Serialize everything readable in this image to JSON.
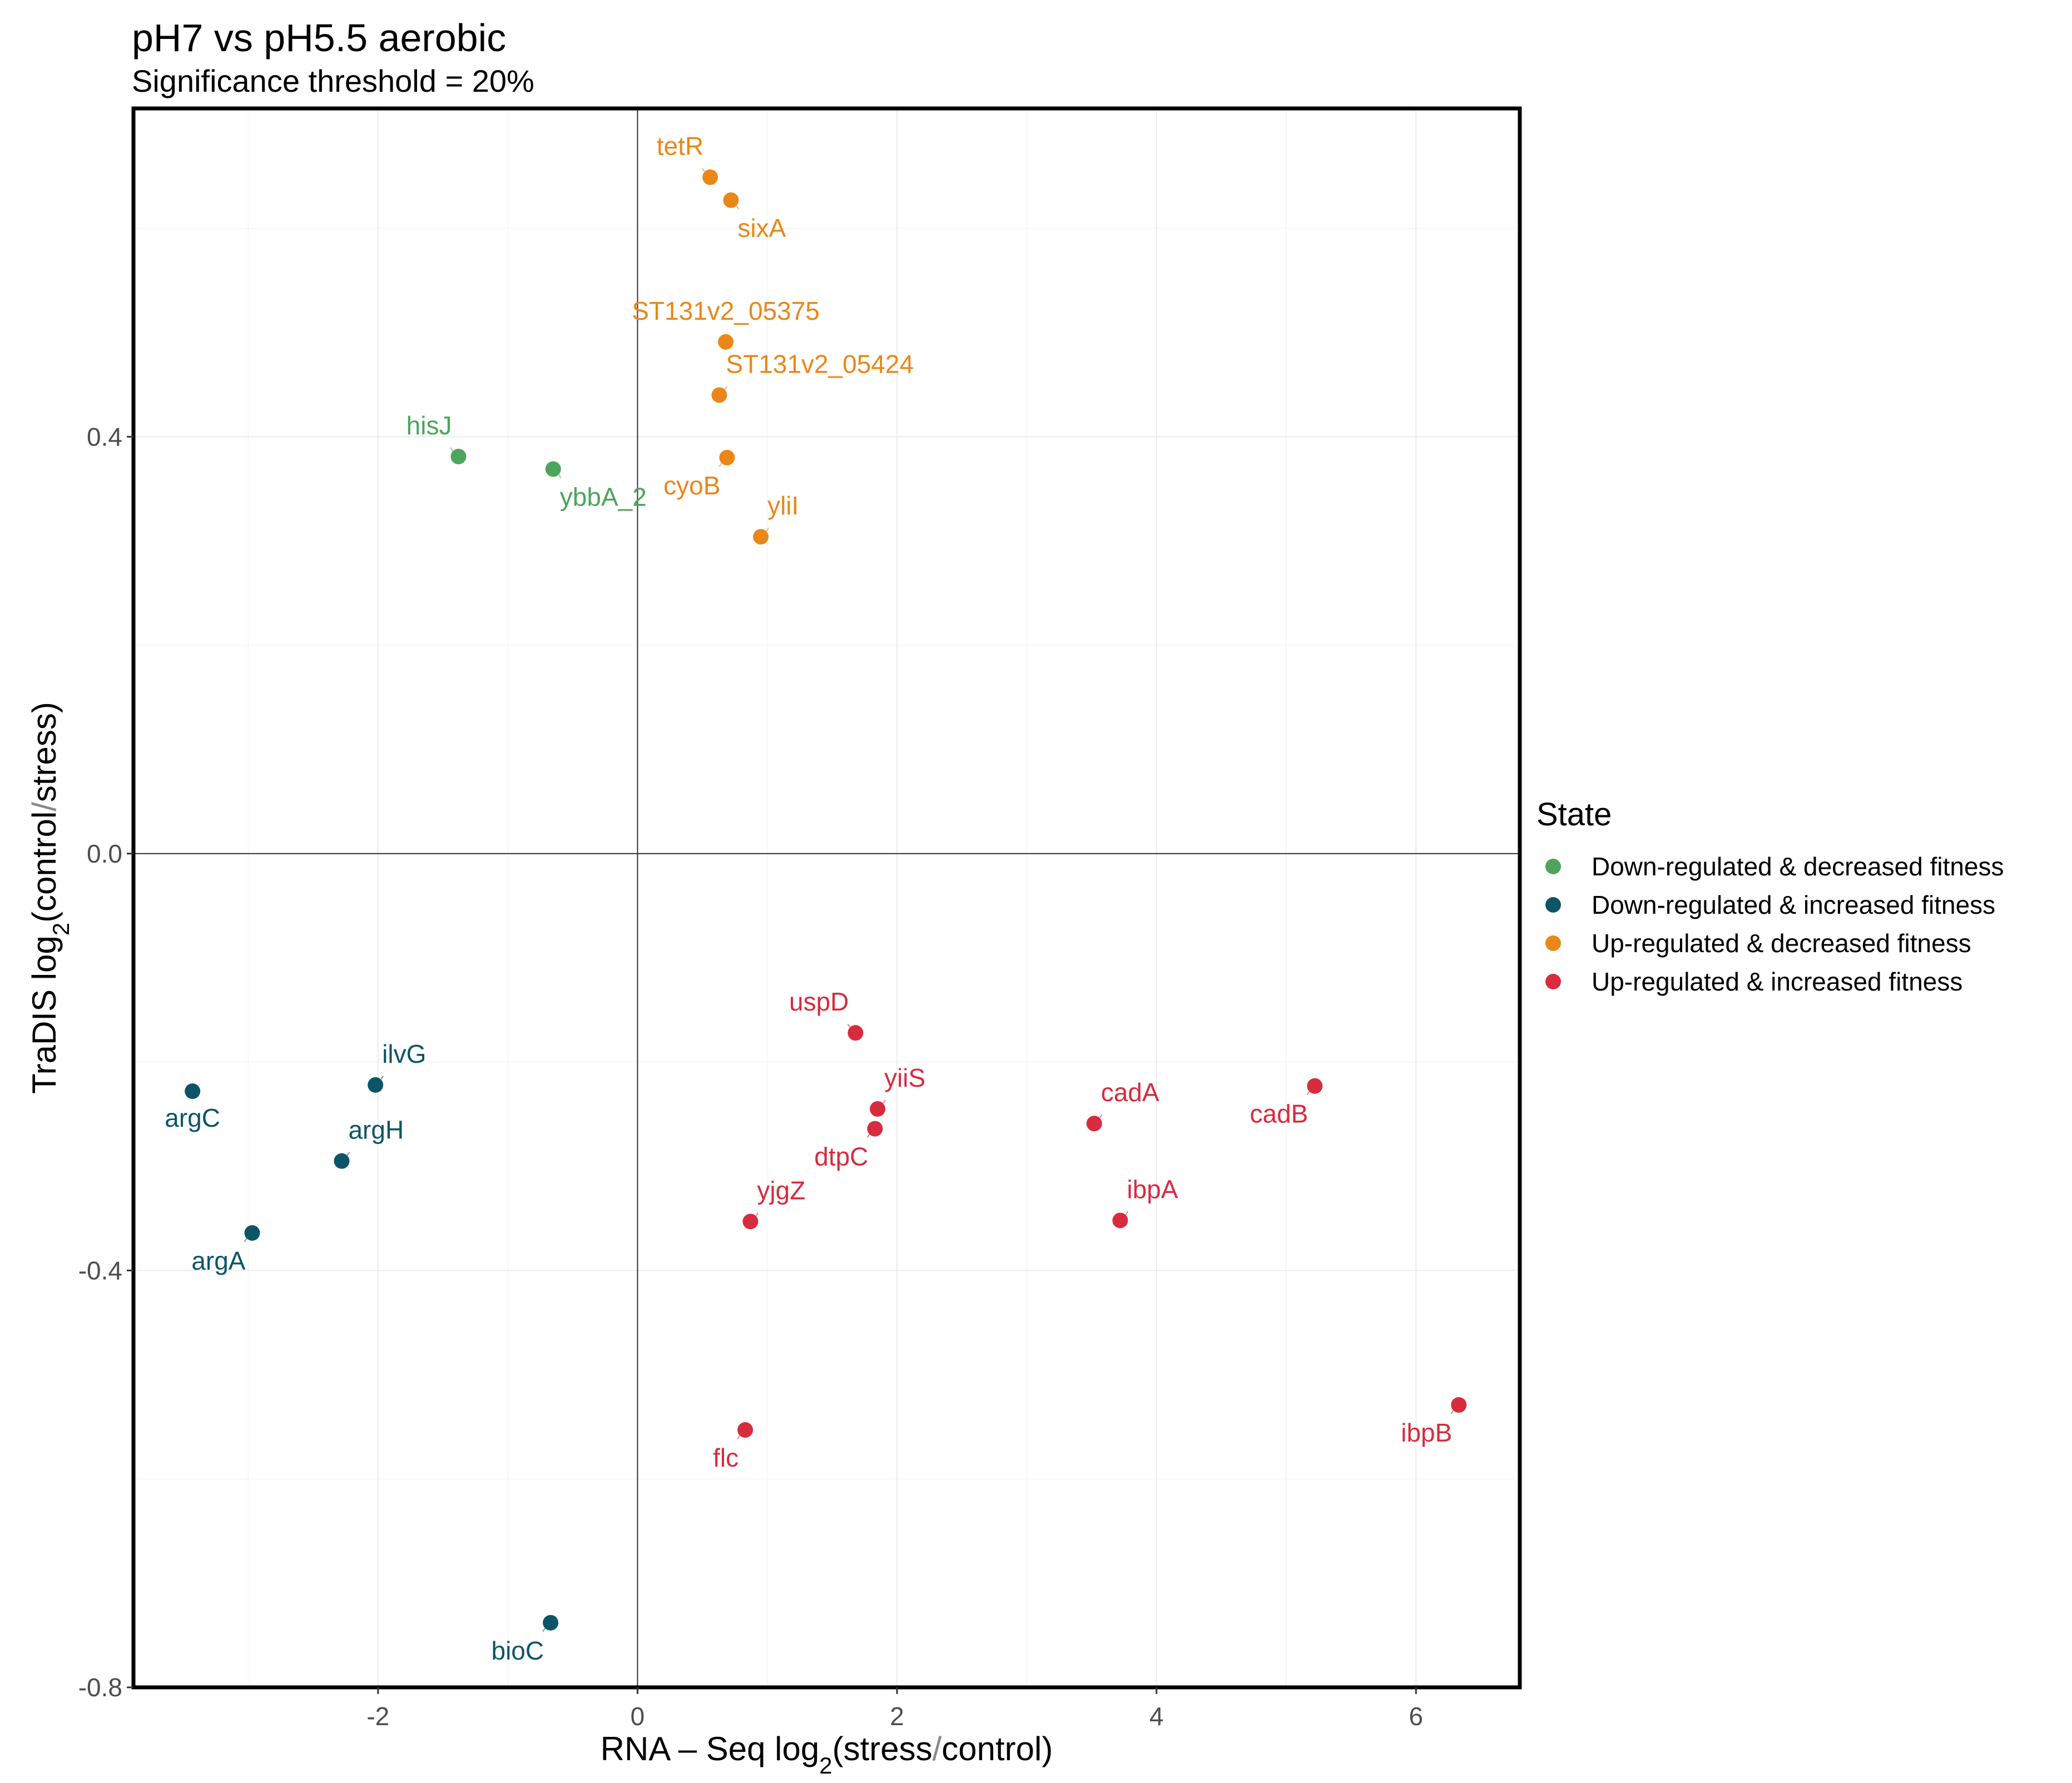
{
  "chart_data": {
    "type": "scatter",
    "title": "pH7 vs pH5.5 aerobic",
    "subtitle": "Significance threshold = 20%",
    "xlabel": {
      "prefix": "RNA – Seq  log",
      "sub": "2",
      "paren": "(stress",
      "slash": "/",
      "suffix": "control)"
    },
    "ylabel": {
      "prefix": "TraDIS  log",
      "sub": "2",
      "paren": "(control",
      "slash": "/",
      "suffix": "stress)"
    },
    "xlim": [
      -3.885,
      6.8
    ],
    "ylim": [
      -0.8,
      0.715
    ],
    "xticks": [
      -2,
      0,
      2,
      4,
      6
    ],
    "xtick_labels": [
      "-2",
      "0",
      "2",
      "4",
      "6"
    ],
    "yticks": [
      -0.8,
      -0.4,
      0.0,
      0.4
    ],
    "ytick_labels": [
      "-0.8",
      "-0.4",
      "0.0",
      "0.4"
    ],
    "grid": true,
    "legend": {
      "title": "State",
      "position": "right",
      "entries": [
        {
          "label": "Down-regulated & decreased fitness",
          "color": "#4ea45c"
        },
        {
          "label": "Down-regulated & increased fitness",
          "color": "#0d5566"
        },
        {
          "label": "Up-regulated & decreased fitness",
          "color": "#ea8719"
        },
        {
          "label": "Up-regulated & increased fitness",
          "color": "#d62c3e"
        }
      ]
    },
    "points": [
      {
        "gene": "hisJ",
        "x": -1.38,
        "y": 0.381,
        "state": 0,
        "label_pos": "above-left"
      },
      {
        "gene": "ybbA_2",
        "x": -0.65,
        "y": 0.369,
        "state": 0,
        "label_pos": "below-right"
      },
      {
        "gene": "argC",
        "x": -3.43,
        "y": -0.228,
        "state": 1,
        "label_pos": "below"
      },
      {
        "gene": "ilvG",
        "x": -2.02,
        "y": -0.222,
        "state": 1,
        "label_pos": "above-right"
      },
      {
        "gene": "argH",
        "x": -2.28,
        "y": -0.295,
        "state": 1,
        "label_pos": "above-right"
      },
      {
        "gene": "argA",
        "x": -2.97,
        "y": -0.364,
        "state": 1,
        "label_pos": "below-left"
      },
      {
        "gene": "bioC",
        "x": -0.67,
        "y": -0.738,
        "state": 1,
        "label_pos": "below-left"
      },
      {
        "gene": "tetR",
        "x": 0.56,
        "y": 0.649,
        "state": 2,
        "label_pos": "above-left"
      },
      {
        "gene": "sixA",
        "x": 0.72,
        "y": 0.627,
        "state": 2,
        "label_pos": "below-right"
      },
      {
        "gene": "ST131v2_05375",
        "x": 0.68,
        "y": 0.491,
        "state": 2,
        "label_pos": "above"
      },
      {
        "gene": "ST131v2_05424",
        "x": 0.63,
        "y": 0.44,
        "state": 2,
        "label_pos": "above-right"
      },
      {
        "gene": "cyoB",
        "x": 0.69,
        "y": 0.38,
        "state": 2,
        "label_pos": "below-left"
      },
      {
        "gene": "yliI",
        "x": 0.95,
        "y": 0.304,
        "state": 2,
        "label_pos": "above-right"
      },
      {
        "gene": "uspD",
        "x": 1.68,
        "y": -0.172,
        "state": 3,
        "label_pos": "above-left"
      },
      {
        "gene": "yiiS",
        "x": 1.85,
        "y": -0.245,
        "state": 3,
        "label_pos": "above-right"
      },
      {
        "gene": "dtpC",
        "x": 1.83,
        "y": -0.264,
        "state": 3,
        "label_pos": "below-left"
      },
      {
        "gene": "yjgZ",
        "x": 0.87,
        "y": -0.353,
        "state": 3,
        "label_pos": "above-right"
      },
      {
        "gene": "flc",
        "x": 0.83,
        "y": -0.553,
        "state": 3,
        "label_pos": "below-left"
      },
      {
        "gene": "cadA",
        "x": 3.52,
        "y": -0.259,
        "state": 3,
        "label_pos": "above-right"
      },
      {
        "gene": "ibpA",
        "x": 3.72,
        "y": -0.352,
        "state": 3,
        "label_pos": "above-right"
      },
      {
        "gene": "cadB",
        "x": 5.22,
        "y": -0.223,
        "state": 3,
        "label_pos": "below-left"
      },
      {
        "gene": "ibpB",
        "x": 6.33,
        "y": -0.529,
        "state": 3,
        "label_pos": "below-left"
      }
    ]
  }
}
